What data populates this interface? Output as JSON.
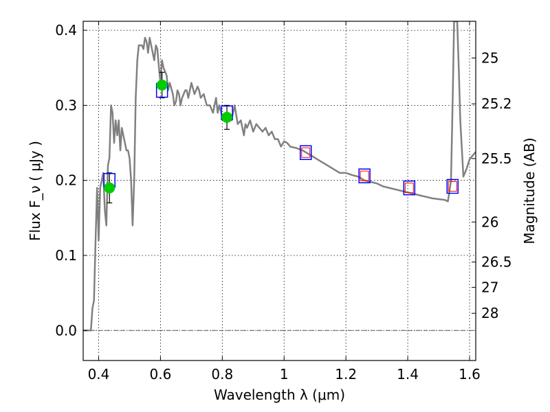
{
  "chart_data": {
    "type": "line",
    "xlabel": "Wavelength  λ (μm)",
    "ylabel": "Flux  F_ν  ( μJy )",
    "ylabel_right": "Magnitude (AB)",
    "xlim": [
      0.35,
      1.62
    ],
    "ylim": [
      -0.04,
      0.412
    ],
    "grid": true,
    "x_ticks": [
      {
        "value": 0.4,
        "label": "0.4"
      },
      {
        "value": 0.6,
        "label": "0.6"
      },
      {
        "value": 0.8,
        "label": "0.8"
      },
      {
        "value": 1.0,
        "label": "1"
      },
      {
        "value": 1.2,
        "label": "1.2"
      },
      {
        "value": 1.4,
        "label": "1.4"
      },
      {
        "value": 1.6,
        "label": "1.6"
      }
    ],
    "y_ticks": [
      {
        "value": 0.0,
        "label": "0.0"
      },
      {
        "value": 0.1,
        "label": "0.1"
      },
      {
        "value": 0.2,
        "label": "0.2"
      },
      {
        "value": 0.3,
        "label": "0.3"
      },
      {
        "value": 0.4,
        "label": "0.4"
      }
    ],
    "right_ticks": [
      {
        "value": 25,
        "label": "25"
      },
      {
        "value": 25.2,
        "label": "25.2"
      },
      {
        "value": 25.5,
        "label": "25.5"
      },
      {
        "value": 26,
        "label": "26"
      },
      {
        "value": 26.5,
        "label": "26.5"
      },
      {
        "value": 27,
        "label": "27"
      },
      {
        "value": 28,
        "label": "28"
      }
    ],
    "sed_model": {
      "color": "#808080",
      "points": [
        [
          0.35,
          0.0
        ],
        [
          0.375,
          0.0
        ],
        [
          0.38,
          0.03
        ],
        [
          0.385,
          0.04
        ],
        [
          0.39,
          0.12
        ],
        [
          0.395,
          0.19
        ],
        [
          0.4,
          0.12
        ],
        [
          0.405,
          0.19
        ],
        [
          0.41,
          0.2
        ],
        [
          0.415,
          0.21
        ],
        [
          0.42,
          0.16
        ],
        [
          0.425,
          0.14
        ],
        [
          0.43,
          0.22
        ],
        [
          0.435,
          0.23
        ],
        [
          0.44,
          0.3
        ],
        [
          0.445,
          0.29
        ],
        [
          0.45,
          0.25
        ],
        [
          0.455,
          0.28
        ],
        [
          0.46,
          0.26
        ],
        [
          0.465,
          0.28
        ],
        [
          0.47,
          0.24
        ],
        [
          0.475,
          0.27
        ],
        [
          0.48,
          0.26
        ],
        [
          0.485,
          0.25
        ],
        [
          0.49,
          0.24
        ],
        [
          0.495,
          0.24
        ],
        [
          0.5,
          0.23
        ],
        [
          0.505,
          0.2
        ],
        [
          0.51,
          0.14
        ],
        [
          0.515,
          0.2
        ],
        [
          0.52,
          0.31
        ],
        [
          0.525,
          0.36
        ],
        [
          0.53,
          0.38
        ],
        [
          0.54,
          0.38
        ],
        [
          0.545,
          0.375
        ],
        [
          0.55,
          0.39
        ],
        [
          0.555,
          0.385
        ],
        [
          0.56,
          0.37
        ],
        [
          0.565,
          0.39
        ],
        [
          0.57,
          0.38
        ],
        [
          0.58,
          0.36
        ],
        [
          0.585,
          0.38
        ],
        [
          0.59,
          0.375
        ],
        [
          0.595,
          0.35
        ],
        [
          0.6,
          0.33
        ],
        [
          0.605,
          0.36
        ],
        [
          0.61,
          0.35
        ],
        [
          0.615,
          0.345
        ],
        [
          0.62,
          0.34
        ],
        [
          0.625,
          0.32
        ],
        [
          0.63,
          0.33
        ],
        [
          0.64,
          0.315
        ],
        [
          0.645,
          0.3
        ],
        [
          0.65,
          0.305
        ],
        [
          0.655,
          0.32
        ],
        [
          0.66,
          0.315
        ],
        [
          0.665,
          0.3
        ],
        [
          0.67,
          0.31
        ],
        [
          0.68,
          0.32
        ],
        [
          0.685,
          0.32
        ],
        [
          0.69,
          0.31
        ],
        [
          0.7,
          0.33
        ],
        [
          0.71,
          0.315
        ],
        [
          0.72,
          0.325
        ],
        [
          0.725,
          0.32
        ],
        [
          0.73,
          0.31
        ],
        [
          0.74,
          0.315
        ],
        [
          0.75,
          0.3
        ],
        [
          0.76,
          0.3
        ],
        [
          0.77,
          0.29
        ],
        [
          0.78,
          0.31
        ],
        [
          0.785,
          0.29
        ],
        [
          0.79,
          0.3
        ],
        [
          0.8,
          0.285
        ],
        [
          0.81,
          0.28
        ],
        [
          0.82,
          0.285
        ],
        [
          0.83,
          0.28
        ],
        [
          0.84,
          0.3
        ],
        [
          0.85,
          0.275
        ],
        [
          0.86,
          0.28
        ],
        [
          0.87,
          0.26
        ],
        [
          0.875,
          0.275
        ],
        [
          0.88,
          0.27
        ],
        [
          0.89,
          0.28
        ],
        [
          0.9,
          0.265
        ],
        [
          0.91,
          0.275
        ],
        [
          0.92,
          0.27
        ],
        [
          0.93,
          0.265
        ],
        [
          0.94,
          0.27
        ],
        [
          0.95,
          0.26
        ],
        [
          0.96,
          0.265
        ],
        [
          0.97,
          0.255
        ],
        [
          0.98,
          0.255
        ],
        [
          0.99,
          0.245
        ],
        [
          1.0,
          0.252
        ],
        [
          1.01,
          0.25
        ],
        [
          1.02,
          0.245
        ],
        [
          1.04,
          0.243
        ],
        [
          1.06,
          0.24
        ],
        [
          1.08,
          0.235
        ],
        [
          1.1,
          0.23
        ],
        [
          1.12,
          0.225
        ],
        [
          1.14,
          0.22
        ],
        [
          1.16,
          0.215
        ],
        [
          1.18,
          0.21
        ],
        [
          1.2,
          0.21
        ],
        [
          1.22,
          0.207
        ],
        [
          1.24,
          0.205
        ],
        [
          1.26,
          0.2
        ],
        [
          1.28,
          0.198
        ],
        [
          1.3,
          0.196
        ],
        [
          1.32,
          0.192
        ],
        [
          1.34,
          0.19
        ],
        [
          1.36,
          0.188
        ],
        [
          1.38,
          0.186
        ],
        [
          1.4,
          0.184
        ],
        [
          1.42,
          0.182
        ],
        [
          1.44,
          0.18
        ],
        [
          1.46,
          0.178
        ],
        [
          1.48,
          0.176
        ],
        [
          1.5,
          0.175
        ],
        [
          1.52,
          0.174
        ],
        [
          1.53,
          0.172
        ],
        [
          1.54,
          0.2
        ],
        [
          1.545,
          0.3
        ],
        [
          1.55,
          0.412
        ],
        [
          1.56,
          0.412
        ],
        [
          1.565,
          0.35
        ],
        [
          1.57,
          0.28
        ],
        [
          1.58,
          0.205
        ],
        [
          1.59,
          0.215
        ],
        [
          1.6,
          0.228
        ],
        [
          1.62,
          0.238
        ]
      ]
    },
    "model_fluxes": {
      "color": "#0000ff",
      "marker": "square",
      "points": [
        [
          0.435,
          0.2
        ],
        [
          0.605,
          0.32
        ],
        [
          0.815,
          0.29
        ],
        [
          1.07,
          0.237
        ],
        [
          1.26,
          0.206
        ],
        [
          1.405,
          0.19
        ],
        [
          1.545,
          0.192
        ]
      ]
    },
    "upper_limits": {
      "color": "#ff0000",
      "marker": "square",
      "points": [
        [
          1.07,
          0.237
        ],
        [
          1.26,
          0.206
        ],
        [
          1.405,
          0.19
        ],
        [
          1.545,
          0.192
        ]
      ]
    },
    "observed": {
      "color": "#00cc00",
      "marker": "circle",
      "points": [
        {
          "x": 0.435,
          "y": 0.19,
          "yerr": 0.02
        },
        {
          "x": 0.605,
          "y": 0.327,
          "yerr": 0.017
        },
        {
          "x": 0.815,
          "y": 0.284,
          "yerr": 0.016
        }
      ]
    }
  }
}
